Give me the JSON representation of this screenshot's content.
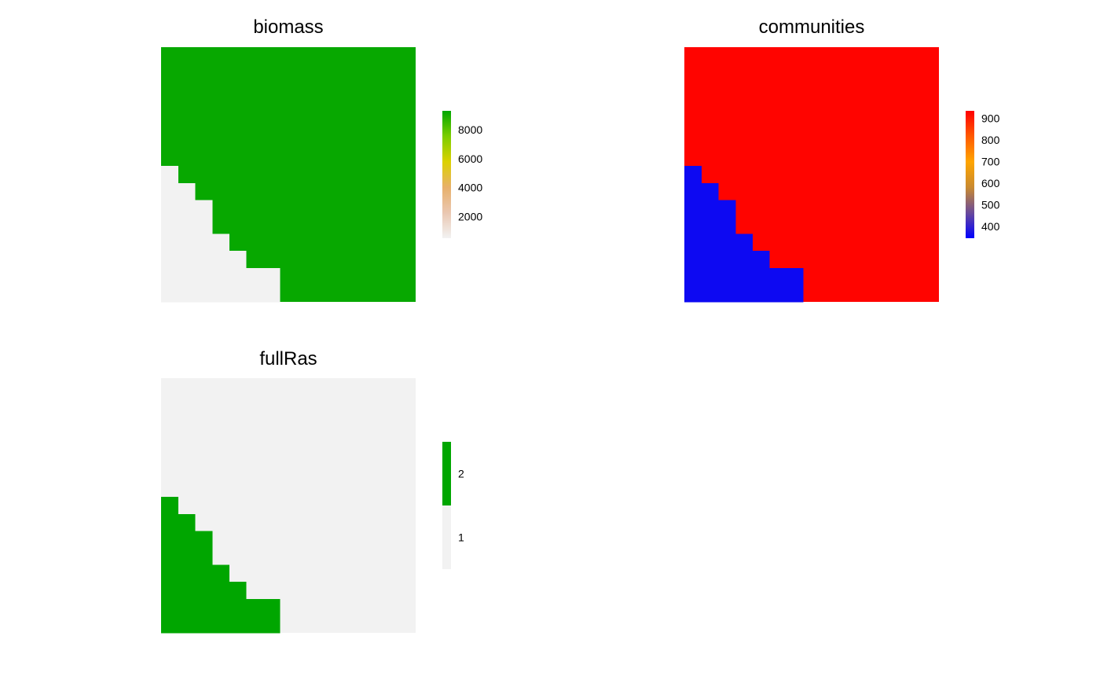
{
  "chart_data": [
    {
      "type": "heatmap",
      "title": "biomass",
      "grid": {
        "cols": 15,
        "rows": 15
      },
      "mask_rows": [
        0,
        0,
        0,
        0,
        0,
        0,
        0,
        1,
        2,
        3,
        3,
        4,
        5,
        7,
        7
      ],
      "mask_value": 0,
      "fill_value": 9200,
      "legend": {
        "kind": "continuous",
        "range": [
          500,
          9300
        ],
        "ticks": [
          2000,
          4000,
          6000,
          8000
        ],
        "colors": [
          "#f2f2f2",
          "#eac7b1",
          "#e8b06a",
          "#dcd100",
          "#7ccd00",
          "#00a600"
        ]
      }
    },
    {
      "type": "heatmap",
      "title": "communities",
      "grid": {
        "cols": 15,
        "rows": 15
      },
      "mask_rows": [
        0,
        0,
        0,
        0,
        0,
        0,
        0,
        1,
        2,
        3,
        3,
        4,
        5,
        7,
        7
      ],
      "mask_value": 360,
      "fill_value": 930,
      "legend": {
        "kind": "continuous",
        "range": [
          345,
          935
        ],
        "ticks": [
          400,
          500,
          600,
          700,
          800,
          900
        ],
        "colors": [
          "#0000ff",
          "#6a4a9a",
          "#c98a30",
          "#ffa500",
          "#ff5a00",
          "#ff0000"
        ]
      }
    },
    {
      "type": "heatmap",
      "title": "fullRas",
      "grid": {
        "cols": 15,
        "rows": 15
      },
      "mask_rows": [
        0,
        0,
        0,
        0,
        0,
        0,
        0,
        1,
        2,
        3,
        3,
        4,
        5,
        7,
        7
      ],
      "mask_value": 2,
      "fill_value": 1,
      "legend": {
        "kind": "categorical",
        "ticks": [
          1,
          2
        ],
        "colors": {
          "1": "#f2f2f2",
          "2": "#00a600"
        }
      }
    }
  ]
}
